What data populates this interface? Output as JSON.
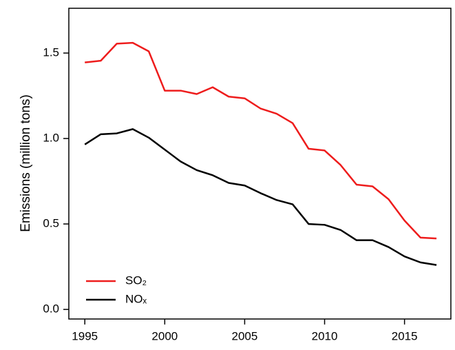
{
  "chart_data": {
    "type": "line",
    "y_label": "Emissions (million tons)",
    "x": [
      1995,
      1996,
      1997,
      1998,
      1999,
      2000,
      2001,
      2002,
      2003,
      2004,
      2005,
      2006,
      2007,
      2008,
      2009,
      2010,
      2011,
      2012,
      2013,
      2014,
      2015,
      2016,
      2017
    ],
    "series": [
      {
        "name": "SO₂",
        "color": "#ee1c1c",
        "values": [
          1.445,
          1.455,
          1.555,
          1.56,
          1.51,
          1.28,
          1.28,
          1.26,
          1.3,
          1.245,
          1.235,
          1.175,
          1.145,
          1.09,
          0.94,
          0.93,
          0.845,
          0.73,
          0.72,
          0.645,
          0.52,
          0.42,
          0.415
        ]
      },
      {
        "name": "NOₓ",
        "color": "#000000",
        "values": [
          0.965,
          1.025,
          1.03,
          1.055,
          1.005,
          0.935,
          0.865,
          0.815,
          0.785,
          0.74,
          0.725,
          0.68,
          0.64,
          0.615,
          0.5,
          0.495,
          0.465,
          0.405,
          0.405,
          0.365,
          0.31,
          0.275,
          0.26
        ]
      }
    ],
    "xlim": [
      1994.0,
      2017.9
    ],
    "xticks": [
      1995,
      2000,
      2005,
      2010,
      2015
    ],
    "ylim": [
      -0.056,
      1.762
    ],
    "yticks": [
      {
        "value": 0,
        "label": "0.0"
      },
      0.5,
      {
        "value": 1,
        "label": "1.0"
      },
      1.5
    ],
    "legend": "lower left"
  }
}
